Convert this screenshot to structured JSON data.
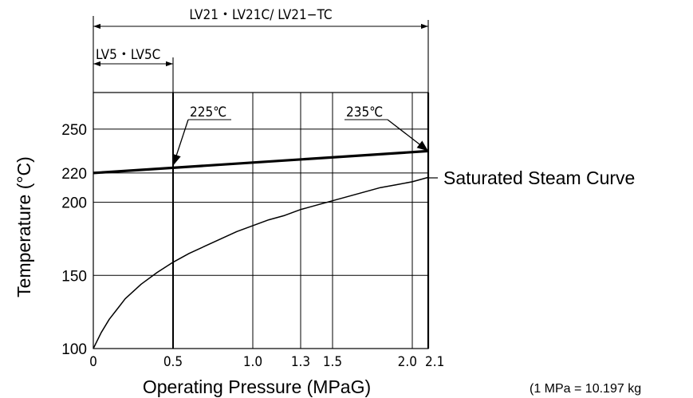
{
  "chart_data": {
    "type": "line",
    "title": "",
    "xlabel": "Operating Pressure (MPaG)",
    "ylabel": "Temperature (°C)",
    "xlim": [
      0,
      2.1
    ],
    "ylim": [
      100,
      275
    ],
    "x_ticks": [
      {
        "value": 0,
        "label": "0"
      },
      {
        "value": 0.5,
        "label": "0.5"
      },
      {
        "value": 1.0,
        "label": "1.0"
      },
      {
        "value": 1.3,
        "label": "1.3"
      },
      {
        "value": 1.5,
        "label": "1.5"
      },
      {
        "value": 2.0,
        "label": "2.0"
      },
      {
        "value": 2.1,
        "label": "2.1"
      }
    ],
    "y_ticks": [
      {
        "value": 100,
        "label": "100"
      },
      {
        "value": 150,
        "label": "150"
      },
      {
        "value": 200,
        "label": "200"
      },
      {
        "value": 220,
        "label": "220"
      },
      {
        "value": 250,
        "label": "250"
      }
    ],
    "grid": true,
    "series": [
      {
        "name": "",
        "style": "bold",
        "x": [
          0,
          2.1
        ],
        "y": [
          220,
          235
        ]
      },
      {
        "name": "Saturated Steam Curve",
        "style": "thin",
        "x": [
          0,
          0.05,
          0.1,
          0.15,
          0.2,
          0.3,
          0.4,
          0.5,
          0.6,
          0.7,
          0.8,
          0.9,
          1.0,
          1.1,
          1.2,
          1.3,
          1.4,
          1.5,
          1.6,
          1.7,
          1.8,
          1.9,
          2.0,
          2.1
        ],
        "y": [
          100,
          111,
          120,
          127,
          134,
          144,
          152,
          159,
          165,
          170,
          175,
          180,
          184,
          188,
          191,
          195,
          198,
          201,
          204,
          207,
          210,
          212,
          214,
          217
        ]
      }
    ],
    "annotations": [
      {
        "text": "225℃",
        "x": 0.5,
        "y": 225
      },
      {
        "text": "235℃",
        "x": 2.1,
        "y": 235
      }
    ],
    "ranges": [
      {
        "text": "LV21・LV21C/ LV21−TC",
        "from": 0,
        "to": 2.1
      },
      {
        "text": "LV5・LV5C",
        "from": 0,
        "to": 0.5
      }
    ],
    "curve_label": "Saturated Steam Curve",
    "footnote": "(1 MPa = 10.197 kg"
  }
}
